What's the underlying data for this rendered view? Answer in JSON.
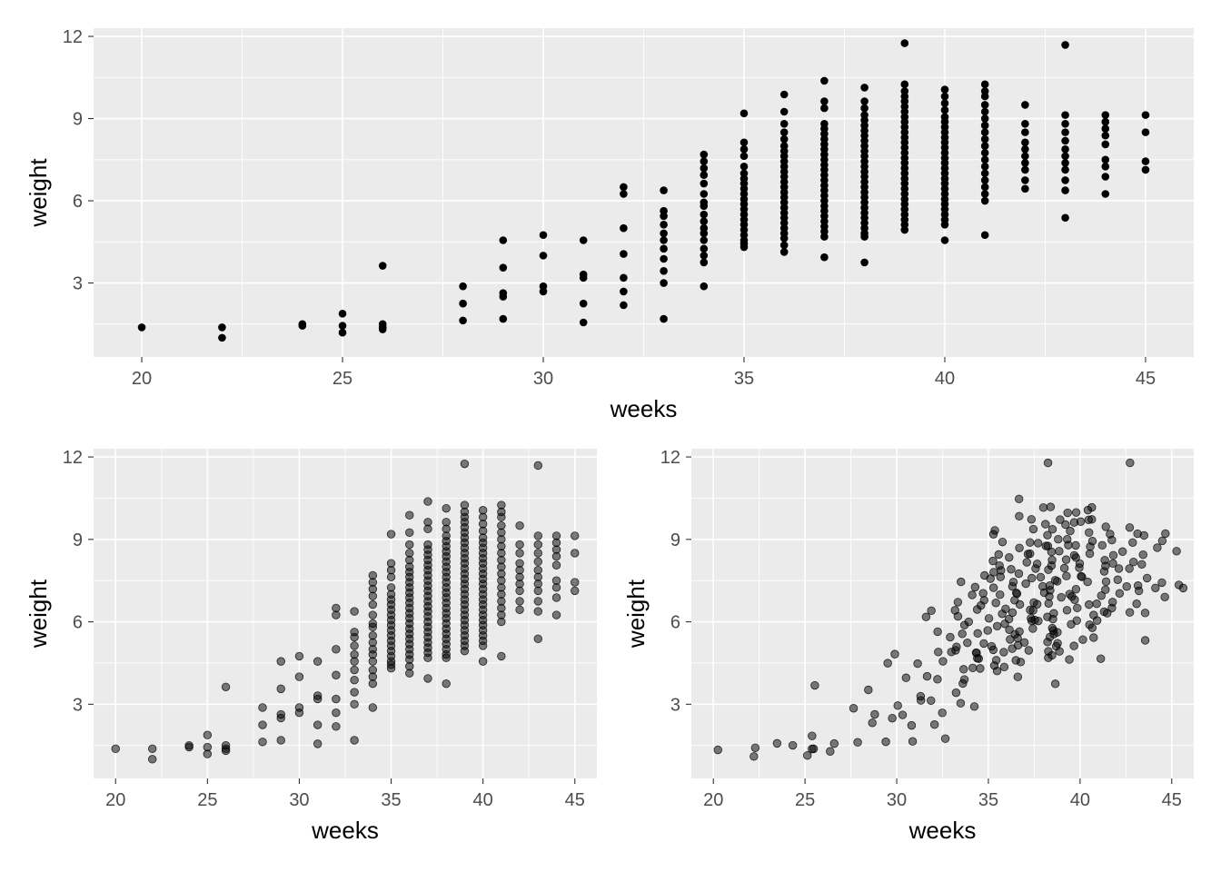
{
  "chart_data": [
    {
      "type": "scatter",
      "title": "",
      "xlabel": "weeks",
      "ylabel": "weight",
      "xlim": [
        18.8,
        46.2
      ],
      "ylim": [
        0.3,
        12.3
      ],
      "xticks": [
        20,
        25,
        30,
        35,
        40,
        45
      ],
      "yticks": [
        3,
        6,
        9,
        12
      ],
      "xtick_labels": [
        "20",
        "25",
        "30",
        "35",
        "40",
        "45"
      ],
      "ytick_labels": [
        "3",
        "6",
        "9",
        "12"
      ],
      "grid": true,
      "point_color": "#000000",
      "point_alpha": 1.0,
      "jitter": false,
      "variant": "plain"
    },
    {
      "type": "scatter",
      "title": "",
      "xlabel": "weeks",
      "ylabel": "weight",
      "xlim": [
        18.8,
        46.2
      ],
      "ylim": [
        0.3,
        12.3
      ],
      "xticks": [
        20,
        25,
        30,
        35,
        40,
        45
      ],
      "yticks": [
        3,
        6,
        9,
        12
      ],
      "xtick_labels": [
        "20",
        "25",
        "30",
        "35",
        "40",
        "45"
      ],
      "ytick_labels": [
        "3",
        "6",
        "9",
        "12"
      ],
      "grid": true,
      "point_color": "#000000",
      "point_alpha": 0.5,
      "jitter": false,
      "variant": "alpha"
    },
    {
      "type": "scatter",
      "title": "",
      "xlabel": "weeks",
      "ylabel": "weight",
      "xlim": [
        18.8,
        46.2
      ],
      "ylim": [
        0.3,
        12.3
      ],
      "xticks": [
        20,
        25,
        30,
        35,
        40,
        45
      ],
      "yticks": [
        3,
        6,
        9,
        12
      ],
      "xtick_labels": [
        "20",
        "25",
        "30",
        "35",
        "40",
        "45"
      ],
      "ytick_labels": [
        "3",
        "6",
        "9",
        "12"
      ],
      "grid": true,
      "point_color": "#000000",
      "point_alpha": 0.5,
      "jitter": true,
      "variant": "alpha-jitter"
    }
  ],
  "points": {
    "columns": [
      "weeks",
      "weight"
    ],
    "values": [
      [
        20,
        1.38
      ],
      [
        22,
        1.0
      ],
      [
        22,
        1.38
      ],
      [
        24,
        1.5
      ],
      [
        24,
        1.44
      ],
      [
        25,
        1.88
      ],
      [
        25,
        1.44
      ],
      [
        25,
        1.19
      ],
      [
        26,
        3.63
      ],
      [
        26,
        1.5
      ],
      [
        26,
        1.38
      ],
      [
        26,
        1.31
      ],
      [
        28,
        2.88
      ],
      [
        28,
        2.25
      ],
      [
        28,
        1.63
      ],
      [
        29,
        4.56
      ],
      [
        29,
        3.56
      ],
      [
        29,
        2.63
      ],
      [
        29,
        2.5
      ],
      [
        29,
        1.69
      ],
      [
        30,
        4.75
      ],
      [
        30,
        4.0
      ],
      [
        30,
        2.88
      ],
      [
        30,
        2.69
      ],
      [
        31,
        4.56
      ],
      [
        31,
        3.31
      ],
      [
        31,
        3.19
      ],
      [
        31,
        2.25
      ],
      [
        31,
        1.56
      ],
      [
        32,
        6.5
      ],
      [
        32,
        6.25
      ],
      [
        32,
        5.0
      ],
      [
        32,
        4.06
      ],
      [
        32,
        3.19
      ],
      [
        32,
        2.69
      ],
      [
        32,
        2.19
      ],
      [
        33,
        6.38
      ],
      [
        33,
        5.63
      ],
      [
        33,
        5.44
      ],
      [
        33,
        5.13
      ],
      [
        33,
        4.81
      ],
      [
        33,
        4.56
      ],
      [
        33,
        4.25
      ],
      [
        33,
        3.88
      ],
      [
        33,
        3.44
      ],
      [
        33,
        3.0
      ],
      [
        33,
        1.69
      ],
      [
        34,
        7.69
      ],
      [
        34,
        7.44
      ],
      [
        34,
        7.19
      ],
      [
        34,
        6.94
      ],
      [
        34,
        6.63
      ],
      [
        34,
        6.25
      ],
      [
        34,
        5.94
      ],
      [
        34,
        5.81
      ],
      [
        34,
        5.5
      ],
      [
        34,
        5.25
      ],
      [
        34,
        5.0
      ],
      [
        34,
        4.81
      ],
      [
        34,
        4.56
      ],
      [
        34,
        4.25
      ],
      [
        34,
        4.0
      ],
      [
        34,
        3.75
      ],
      [
        34,
        2.88
      ],
      [
        35,
        9.19
      ],
      [
        35,
        8.13
      ],
      [
        35,
        7.88
      ],
      [
        35,
        7.63
      ],
      [
        35,
        7.25
      ],
      [
        35,
        7.0
      ],
      [
        35,
        6.81
      ],
      [
        35,
        6.63
      ],
      [
        35,
        6.44
      ],
      [
        35,
        6.25
      ],
      [
        35,
        6.06
      ],
      [
        35,
        5.88
      ],
      [
        35,
        5.69
      ],
      [
        35,
        5.5
      ],
      [
        35,
        5.31
      ],
      [
        35,
        5.13
      ],
      [
        35,
        4.94
      ],
      [
        35,
        4.75
      ],
      [
        35,
        4.56
      ],
      [
        35,
        4.44
      ],
      [
        35,
        4.31
      ],
      [
        36,
        9.88
      ],
      [
        36,
        9.25
      ],
      [
        36,
        8.81
      ],
      [
        36,
        8.5
      ],
      [
        36,
        8.25
      ],
      [
        36,
        8.0
      ],
      [
        36,
        7.81
      ],
      [
        36,
        7.63
      ],
      [
        36,
        7.44
      ],
      [
        36,
        7.25
      ],
      [
        36,
        7.06
      ],
      [
        36,
        6.88
      ],
      [
        36,
        6.69
      ],
      [
        36,
        6.5
      ],
      [
        36,
        6.31
      ],
      [
        36,
        6.13
      ],
      [
        36,
        5.94
      ],
      [
        36,
        5.75
      ],
      [
        36,
        5.56
      ],
      [
        36,
        5.38
      ],
      [
        36,
        5.19
      ],
      [
        36,
        5.0
      ],
      [
        36,
        4.81
      ],
      [
        36,
        4.63
      ],
      [
        36,
        4.38
      ],
      [
        36,
        4.13
      ],
      [
        37,
        10.38
      ],
      [
        37,
        9.63
      ],
      [
        37,
        9.38
      ],
      [
        37,
        8.81
      ],
      [
        37,
        8.63
      ],
      [
        37,
        8.44
      ],
      [
        37,
        8.25
      ],
      [
        37,
        8.06
      ],
      [
        37,
        7.88
      ],
      [
        37,
        7.69
      ],
      [
        37,
        7.5
      ],
      [
        37,
        7.31
      ],
      [
        37,
        7.13
      ],
      [
        37,
        6.94
      ],
      [
        37,
        6.75
      ],
      [
        37,
        6.56
      ],
      [
        37,
        6.38
      ],
      [
        37,
        6.19
      ],
      [
        37,
        6.0
      ],
      [
        37,
        5.81
      ],
      [
        37,
        5.63
      ],
      [
        37,
        5.44
      ],
      [
        37,
        5.25
      ],
      [
        37,
        5.06
      ],
      [
        37,
        4.88
      ],
      [
        37,
        4.69
      ],
      [
        37,
        3.94
      ],
      [
        38,
        10.13
      ],
      [
        38,
        9.63
      ],
      [
        38,
        9.38
      ],
      [
        38,
        9.13
      ],
      [
        38,
        8.94
      ],
      [
        38,
        8.75
      ],
      [
        38,
        8.56
      ],
      [
        38,
        8.38
      ],
      [
        38,
        8.19
      ],
      [
        38,
        8.0
      ],
      [
        38,
        7.81
      ],
      [
        38,
        7.63
      ],
      [
        38,
        7.44
      ],
      [
        38,
        7.25
      ],
      [
        38,
        7.06
      ],
      [
        38,
        6.88
      ],
      [
        38,
        6.69
      ],
      [
        38,
        6.5
      ],
      [
        38,
        6.31
      ],
      [
        38,
        6.13
      ],
      [
        38,
        5.94
      ],
      [
        38,
        5.75
      ],
      [
        38,
        5.56
      ],
      [
        38,
        5.38
      ],
      [
        38,
        5.19
      ],
      [
        38,
        5.0
      ],
      [
        38,
        4.81
      ],
      [
        38,
        4.69
      ],
      [
        38,
        3.75
      ],
      [
        39,
        11.75
      ],
      [
        39,
        10.25
      ],
      [
        39,
        10.0
      ],
      [
        39,
        9.81
      ],
      [
        39,
        9.63
      ],
      [
        39,
        9.44
      ],
      [
        39,
        9.25
      ],
      [
        39,
        9.06
      ],
      [
        39,
        8.88
      ],
      [
        39,
        8.69
      ],
      [
        39,
        8.5
      ],
      [
        39,
        8.31
      ],
      [
        39,
        8.13
      ],
      [
        39,
        7.94
      ],
      [
        39,
        7.75
      ],
      [
        39,
        7.56
      ],
      [
        39,
        7.38
      ],
      [
        39,
        7.19
      ],
      [
        39,
        7.0
      ],
      [
        39,
        6.81
      ],
      [
        39,
        6.63
      ],
      [
        39,
        6.44
      ],
      [
        39,
        6.25
      ],
      [
        39,
        6.06
      ],
      [
        39,
        5.88
      ],
      [
        39,
        5.69
      ],
      [
        39,
        5.5
      ],
      [
        39,
        5.31
      ],
      [
        39,
        5.13
      ],
      [
        39,
        4.94
      ],
      [
        40,
        10.06
      ],
      [
        40,
        9.81
      ],
      [
        40,
        9.56
      ],
      [
        40,
        9.31
      ],
      [
        40,
        9.06
      ],
      [
        40,
        8.88
      ],
      [
        40,
        8.69
      ],
      [
        40,
        8.5
      ],
      [
        40,
        8.31
      ],
      [
        40,
        8.13
      ],
      [
        40,
        7.94
      ],
      [
        40,
        7.75
      ],
      [
        40,
        7.56
      ],
      [
        40,
        7.38
      ],
      [
        40,
        7.19
      ],
      [
        40,
        7.0
      ],
      [
        40,
        6.81
      ],
      [
        40,
        6.63
      ],
      [
        40,
        6.44
      ],
      [
        40,
        6.25
      ],
      [
        40,
        6.06
      ],
      [
        40,
        5.88
      ],
      [
        40,
        5.69
      ],
      [
        40,
        5.5
      ],
      [
        40,
        5.31
      ],
      [
        40,
        5.13
      ],
      [
        40,
        4.56
      ],
      [
        41,
        10.25
      ],
      [
        41,
        10.0
      ],
      [
        41,
        9.81
      ],
      [
        41,
        9.5
      ],
      [
        41,
        9.25
      ],
      [
        41,
        9.0
      ],
      [
        41,
        8.75
      ],
      [
        41,
        8.5
      ],
      [
        41,
        8.25
      ],
      [
        41,
        8.0
      ],
      [
        41,
        7.75
      ],
      [
        41,
        7.5
      ],
      [
        41,
        7.25
      ],
      [
        41,
        7.0
      ],
      [
        41,
        6.75
      ],
      [
        41,
        6.5
      ],
      [
        41,
        6.25
      ],
      [
        41,
        6.0
      ],
      [
        41,
        4.75
      ],
      [
        42,
        9.5
      ],
      [
        42,
        8.81
      ],
      [
        42,
        8.5
      ],
      [
        42,
        8.13
      ],
      [
        42,
        7.88
      ],
      [
        42,
        7.63
      ],
      [
        42,
        7.38
      ],
      [
        42,
        7.13
      ],
      [
        42,
        6.75
      ],
      [
        42,
        6.44
      ],
      [
        43,
        11.69
      ],
      [
        43,
        9.13
      ],
      [
        43,
        8.81
      ],
      [
        43,
        8.5
      ],
      [
        43,
        8.19
      ],
      [
        43,
        7.88
      ],
      [
        43,
        7.63
      ],
      [
        43,
        7.38
      ],
      [
        43,
        7.13
      ],
      [
        43,
        6.75
      ],
      [
        43,
        6.38
      ],
      [
        43,
        5.38
      ],
      [
        44,
        9.13
      ],
      [
        44,
        8.88
      ],
      [
        44,
        8.63
      ],
      [
        44,
        8.38
      ],
      [
        44,
        8.06
      ],
      [
        44,
        7.5
      ],
      [
        44,
        7.25
      ],
      [
        44,
        6.88
      ],
      [
        44,
        6.25
      ],
      [
        45,
        9.13
      ],
      [
        45,
        8.5
      ],
      [
        45,
        7.44
      ],
      [
        45,
        7.13
      ]
    ]
  }
}
